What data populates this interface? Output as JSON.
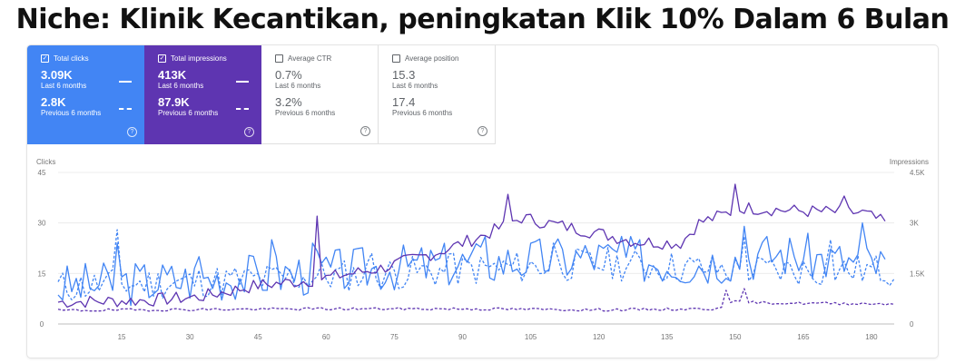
{
  "page_title": "Niche: Klinik Kecantikan, peningkatan Klik 10% Dalam 6 Bulan",
  "metrics": [
    {
      "label": "Total clicks",
      "checked": true,
      "value": "3.09K",
      "period": "Last 6 months",
      "prev_value": "2.8K",
      "prev_period": "Previous 6 months",
      "color": "#4285f4"
    },
    {
      "label": "Total impressions",
      "checked": true,
      "value": "413K",
      "period": "Last 6 months",
      "prev_value": "87.9K",
      "prev_period": "Previous 6 months",
      "color": "#5e35b1"
    },
    {
      "label": "Average CTR",
      "checked": false,
      "value": "0.7%",
      "period": "Last 6 months",
      "prev_value": "3.2%",
      "prev_period": "Previous 6 months"
    },
    {
      "label": "Average position",
      "checked": false,
      "value": "15.3",
      "period": "Last 6 months",
      "prev_value": "17.4",
      "prev_period": "Previous 6 months"
    }
  ],
  "icons": {
    "check": "check-icon",
    "help": "help-circle-icon"
  },
  "chart_data": {
    "type": "line",
    "left_axis": {
      "label": "Clicks",
      "ylim": [
        0,
        45
      ],
      "ticks": [
        "0",
        "15",
        "30",
        "45"
      ]
    },
    "right_axis": {
      "label": "Impressions",
      "ylim": [
        0,
        4500
      ],
      "ticks": [
        "0",
        "1.5K",
        "3K",
        "4.5K"
      ]
    },
    "x_ticks": [
      "15",
      "30",
      "45",
      "60",
      "75",
      "90",
      "105",
      "120",
      "135",
      "150",
      "165",
      "180"
    ],
    "xlim": [
      1,
      185
    ],
    "grid": true,
    "series": [
      {
        "axis": "left",
        "color": "#4285f4",
        "style": "solid",
        "range": [
          1,
          183
        ],
        "base": [
          [
            1,
            11
          ],
          [
            40,
            14
          ],
          [
            90,
            18
          ],
          [
            120,
            20
          ],
          [
            140,
            18
          ],
          [
            160,
            21
          ],
          [
            183,
            17
          ]
        ],
        "amp": 7,
        "seed": 3,
        "peaks": [
          [
            14,
            24
          ],
          [
            32,
            20
          ],
          [
            48,
            25
          ],
          [
            57,
            24
          ],
          [
            95,
            26
          ],
          [
            125,
            26
          ],
          [
            152,
            29
          ],
          [
            178,
            30
          ]
        ]
      },
      {
        "axis": "left",
        "color": "#4285f4",
        "style": "dashed",
        "range": [
          1,
          185
        ],
        "base": [
          [
            1,
            11
          ],
          [
            40,
            13
          ],
          [
            90,
            16
          ],
          [
            120,
            18
          ],
          [
            150,
            16
          ],
          [
            185,
            16
          ]
        ],
        "amp": 5,
        "seed": 11,
        "peaks": [
          [
            14,
            28
          ],
          [
            70,
            21
          ],
          [
            88,
            21
          ],
          [
            110,
            24
          ],
          [
            152,
            26
          ],
          [
            171,
            25
          ]
        ]
      },
      {
        "axis": "right",
        "color": "#5e35b1",
        "style": "solid",
        "range": [
          1,
          183
        ],
        "base": [
          [
            1,
            650
          ],
          [
            20,
            700
          ],
          [
            32,
            800
          ],
          [
            45,
            1150
          ],
          [
            57,
            1300
          ],
          [
            72,
            1650
          ],
          [
            85,
            2150
          ],
          [
            95,
            2650
          ],
          [
            103,
            3150
          ],
          [
            118,
            2750
          ],
          [
            128,
            2450
          ],
          [
            138,
            2400
          ],
          [
            142,
            3000
          ],
          [
            152,
            3450
          ],
          [
            165,
            3350
          ],
          [
            178,
            3300
          ],
          [
            183,
            3000
          ]
        ],
        "amp": 200,
        "seed": 7,
        "peaks": [
          [
            58,
            3200
          ],
          [
            100,
            3850
          ],
          [
            150,
            4150
          ],
          [
            174,
            3800
          ]
        ]
      },
      {
        "axis": "right",
        "color": "#5e35b1",
        "style": "dashed",
        "range": [
          1,
          185
        ],
        "base": [
          [
            1,
            400
          ],
          [
            30,
            430
          ],
          [
            60,
            450
          ],
          [
            90,
            450
          ],
          [
            120,
            420
          ],
          [
            145,
            450
          ],
          [
            150,
            650
          ],
          [
            160,
            620
          ],
          [
            185,
            600
          ]
        ],
        "amp": 40,
        "seed": 19,
        "peaks": [
          [
            148,
            1000
          ],
          [
            152,
            1050
          ]
        ]
      }
    ]
  }
}
